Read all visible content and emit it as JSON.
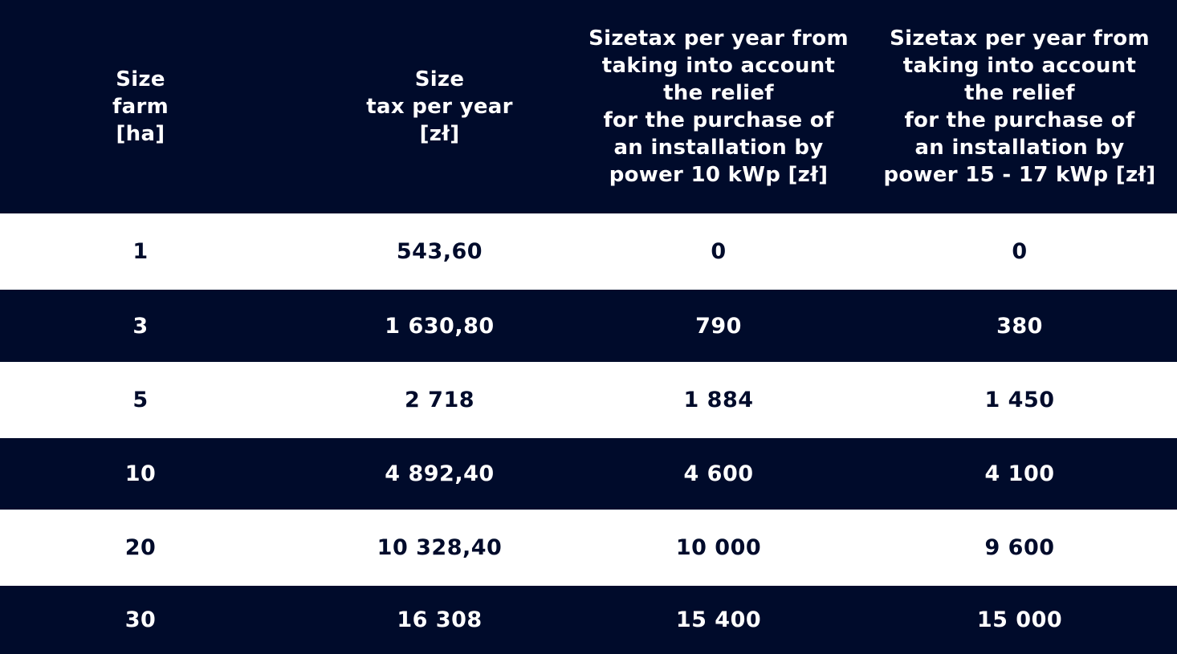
{
  "table": {
    "header": [
      "Size\nfarm\n[ha]",
      "Size\ntax per year\n[zł]",
      "Sizetax per year from\ntaking into account\nthe relief\nfor the purchase of\nan installation by\npower 10 kWp [zł]",
      "Sizetax per year from\ntaking into account\nthe relief\nfor the purchase of\nan installation by\npower 15 - 17 kWp [zł]"
    ],
    "rows": [
      [
        "1",
        "543,60",
        "0",
        "0"
      ],
      [
        "3",
        "1 630,80",
        "790",
        "380"
      ],
      [
        "5",
        "2 718",
        "1 884",
        "1 450"
      ],
      [
        "10",
        "4 892,40",
        "4 600",
        "4 100"
      ],
      [
        "20",
        "10 328,40",
        "10 000",
        "9 600"
      ],
      [
        "30",
        "16 308",
        "15 400",
        "15 000"
      ]
    ]
  },
  "colors": {
    "navy": "#000b2b",
    "white": "#ffffff"
  }
}
